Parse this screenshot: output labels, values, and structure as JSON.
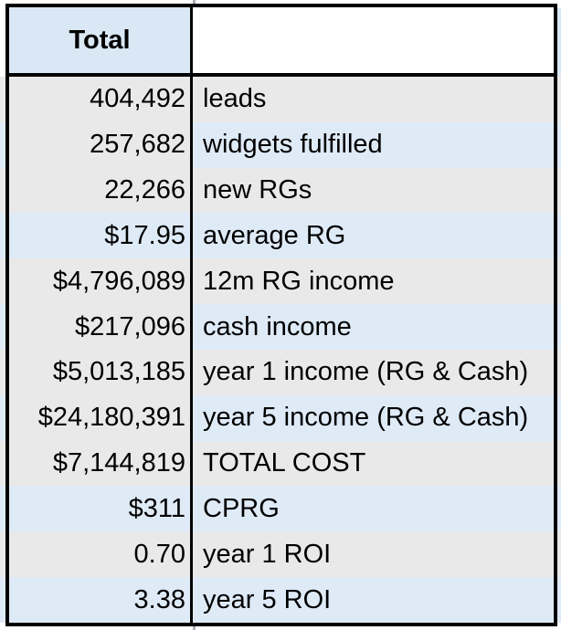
{
  "header": {
    "total_label": "Total",
    "empty_label": ""
  },
  "rows": [
    {
      "value": "404,492",
      "label": "leads",
      "value_band": "gray",
      "label_band": "gray"
    },
    {
      "value": "257,682",
      "label": "widgets fulfilled",
      "value_band": "gray",
      "label_band": "blue"
    },
    {
      "value": "22,266",
      "label": "new RGs",
      "value_band": "gray",
      "label_band": "gray"
    },
    {
      "value": "$17.95",
      "label": "average RG",
      "value_band": "blue",
      "label_band": "blue"
    },
    {
      "value": "$4,796,089",
      "label": "12m RG income",
      "value_band": "gray",
      "label_band": "gray"
    },
    {
      "value": "$217,096",
      "label": "cash income",
      "value_band": "gray",
      "label_band": "blue"
    },
    {
      "value": "$5,013,185",
      "label": "year 1 income (RG & Cash)",
      "value_band": "gray",
      "label_band": "gray"
    },
    {
      "value": "$24,180,391",
      "label": "year 5 income (RG & Cash)",
      "value_band": "gray",
      "label_band": "blue"
    },
    {
      "value": "$7,144,819",
      "label": "TOTAL COST",
      "value_band": "gray",
      "label_band": "gray"
    },
    {
      "value": "$311",
      "label": "CPRG",
      "value_band": "blue",
      "label_band": "blue"
    },
    {
      "value": "0.70",
      "label": "year 1 ROI",
      "value_band": "gray",
      "label_band": "gray"
    },
    {
      "value": "3.38",
      "label": "year 5 ROI",
      "value_band": "blue",
      "label_band": "blue"
    }
  ],
  "colors": {
    "band_gray": "#e9e9e9",
    "band_blue": "#dfeaf7",
    "header_blue": "#dae7f4",
    "table_border": "#000000",
    "gridline": "#a8adb5",
    "text": "#000000"
  }
}
